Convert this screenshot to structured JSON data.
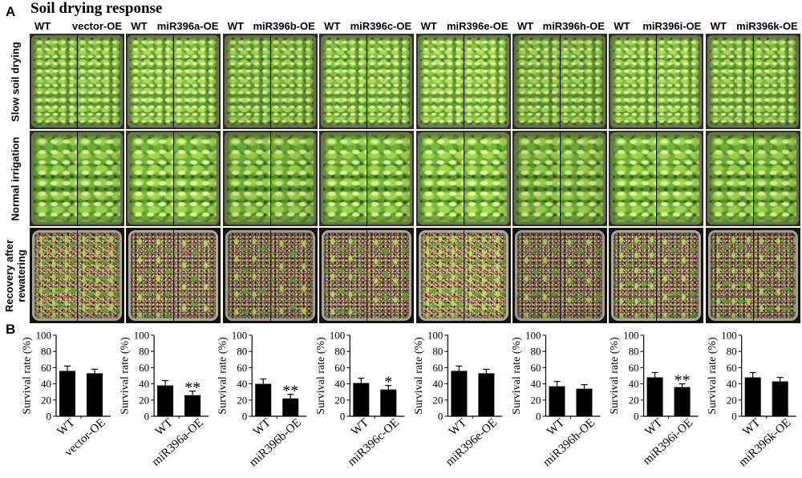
{
  "figure": {
    "panel_a_label": "A",
    "title": "Soil drying response",
    "panel_b_label": "B",
    "row_labels": [
      "Slow soil drying",
      "Normal irrigation",
      "Recovery after rewatering"
    ],
    "columns": [
      {
        "wt": "WT",
        "oe": "vector-OE"
      },
      {
        "wt": "WT",
        "oe": "miR396a-OE"
      },
      {
        "wt": "WT",
        "oe": "miR396b-OE"
      },
      {
        "wt": "WT",
        "oe": "miR396c-OE"
      },
      {
        "wt": "WT",
        "oe": "miR396e-OE"
      },
      {
        "wt": "WT",
        "oe": "miR396h-OE"
      },
      {
        "wt": "WT",
        "oe": "miR396i-OE"
      },
      {
        "wt": "WT",
        "oe": "miR396k-OE"
      }
    ]
  },
  "colors": {
    "bar": "#000000"
  },
  "chart_data": [
    {
      "type": "bar",
      "categories": [
        "WT",
        "vector-OE"
      ],
      "values": [
        56,
        53
      ],
      "errors": [
        6,
        5
      ],
      "significance": [
        "",
        ""
      ],
      "ylabel": "Survival rate (%)",
      "ylim": [
        0,
        100
      ],
      "yticks": [
        0,
        20,
        40,
        60,
        80,
        100
      ]
    },
    {
      "type": "bar",
      "categories": [
        "WT",
        "miR396a-OE"
      ],
      "values": [
        38,
        26
      ],
      "errors": [
        6,
        5
      ],
      "significance": [
        "",
        "**"
      ],
      "ylabel": "Survival rate (%)",
      "ylim": [
        0,
        100
      ],
      "yticks": [
        0,
        20,
        40,
        60,
        80,
        100
      ]
    },
    {
      "type": "bar",
      "categories": [
        "WT",
        "miR396b-OE"
      ],
      "values": [
        40,
        22
      ],
      "errors": [
        6,
        5
      ],
      "significance": [
        "",
        "**"
      ],
      "ylabel": "Survival rate (%)",
      "ylim": [
        0,
        100
      ],
      "yticks": [
        0,
        20,
        40,
        60,
        80,
        100
      ]
    },
    {
      "type": "bar",
      "categories": [
        "WT",
        "miR396c-OE"
      ],
      "values": [
        41,
        33
      ],
      "errors": [
        6,
        5
      ],
      "significance": [
        "",
        "*"
      ],
      "ylabel": "Survival rate (%)",
      "ylim": [
        0,
        100
      ],
      "yticks": [
        0,
        20,
        40,
        60,
        80,
        100
      ]
    },
    {
      "type": "bar",
      "categories": [
        "WT",
        "miR396e-OE"
      ],
      "values": [
        56,
        53
      ],
      "errors": [
        6,
        5
      ],
      "significance": [
        "",
        ""
      ],
      "ylabel": "Survival rate (%)",
      "ylim": [
        0,
        100
      ],
      "yticks": [
        0,
        20,
        40,
        60,
        80,
        100
      ]
    },
    {
      "type": "bar",
      "categories": [
        "WT",
        "miR396h-OE"
      ],
      "values": [
        37,
        34
      ],
      "errors": [
        6,
        5
      ],
      "significance": [
        "",
        ""
      ],
      "ylabel": "Survival rate (%)",
      "ylim": [
        0,
        100
      ],
      "yticks": [
        0,
        20,
        40,
        60,
        80,
        100
      ]
    },
    {
      "type": "bar",
      "categories": [
        "WT",
        "miR396i-OE"
      ],
      "values": [
        48,
        36
      ],
      "errors": [
        6,
        4
      ],
      "significance": [
        "",
        "**"
      ],
      "ylabel": "Survival rate (%)",
      "ylim": [
        0,
        100
      ],
      "yticks": [
        0,
        20,
        40,
        60,
        80,
        100
      ]
    },
    {
      "type": "bar",
      "categories": [
        "WT",
        "miR396k-OE"
      ],
      "values": [
        48,
        43
      ],
      "errors": [
        6,
        5
      ],
      "significance": [
        "",
        ""
      ],
      "ylabel": "Survival rate (%)",
      "ylim": [
        0,
        100
      ],
      "yticks": [
        0,
        20,
        40,
        60,
        80,
        100
      ]
    }
  ]
}
